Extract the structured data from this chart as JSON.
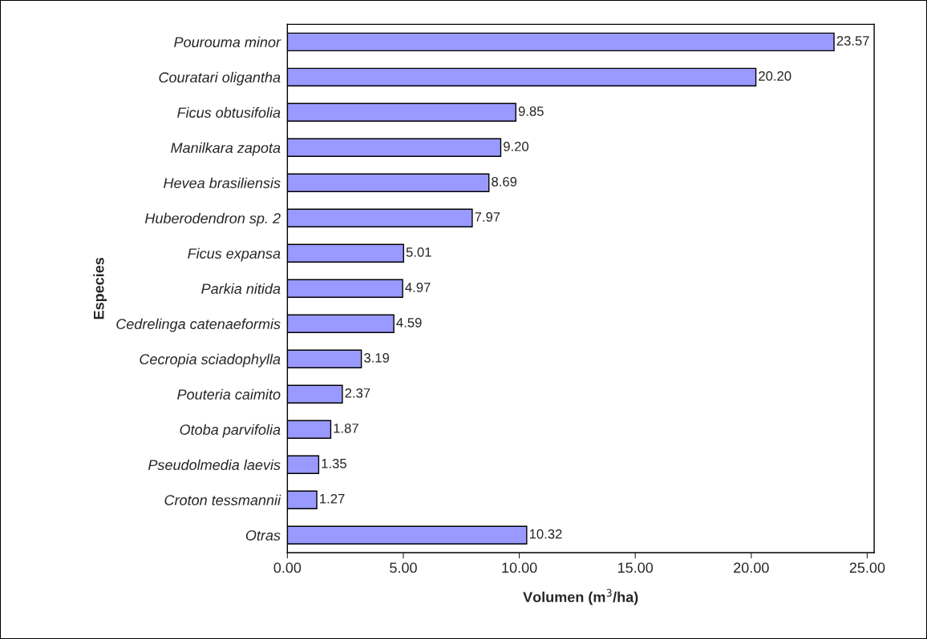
{
  "chart_data": {
    "type": "bar",
    "orientation": "horizontal",
    "xlabel": "Volumen (m$^{3}$/ha)",
    "ylabel": "Especies",
    "categories": [
      "Pourouma minor",
      "Couratari oligantha",
      "Ficus obtusifolia",
      "Manilkara zapota",
      "Hevea brasiliensis",
      "Huberodendron sp. 2",
      "Ficus expansa",
      "Parkia nitida",
      "Cedrelinga catenaeformis",
      "Cecropia sciadophylla",
      "Pouteria caimito",
      "Otoba parvifolia",
      "Pseudolmedia laevis",
      "Croton tessmannii",
      "Otras"
    ],
    "values": [
      23.57,
      20.2,
      9.85,
      9.2,
      8.69,
      7.97,
      5.01,
      4.97,
      4.59,
      3.19,
      2.37,
      1.87,
      1.35,
      1.27,
      10.32
    ],
    "value_labels": [
      "23.57",
      "20.20",
      "9.85",
      "9.20",
      "8.69",
      "7.97",
      "5.01",
      "4.97",
      "4.59",
      "3.19",
      "2.37",
      "1.87",
      "1.35",
      "1.27",
      "10.32"
    ],
    "color": "#9999ff",
    "xlim": [
      0,
      25.3
    ],
    "xticks": [
      {
        "value": 0,
        "label": "0.00"
      },
      {
        "value": 5,
        "label": "5.00"
      },
      {
        "value": 10,
        "label": "10.00"
      },
      {
        "value": 15,
        "label": "15.00"
      },
      {
        "value": 20,
        "label": "20.00"
      },
      {
        "value": 25,
        "label": "25.00"
      }
    ],
    "grid": false
  }
}
